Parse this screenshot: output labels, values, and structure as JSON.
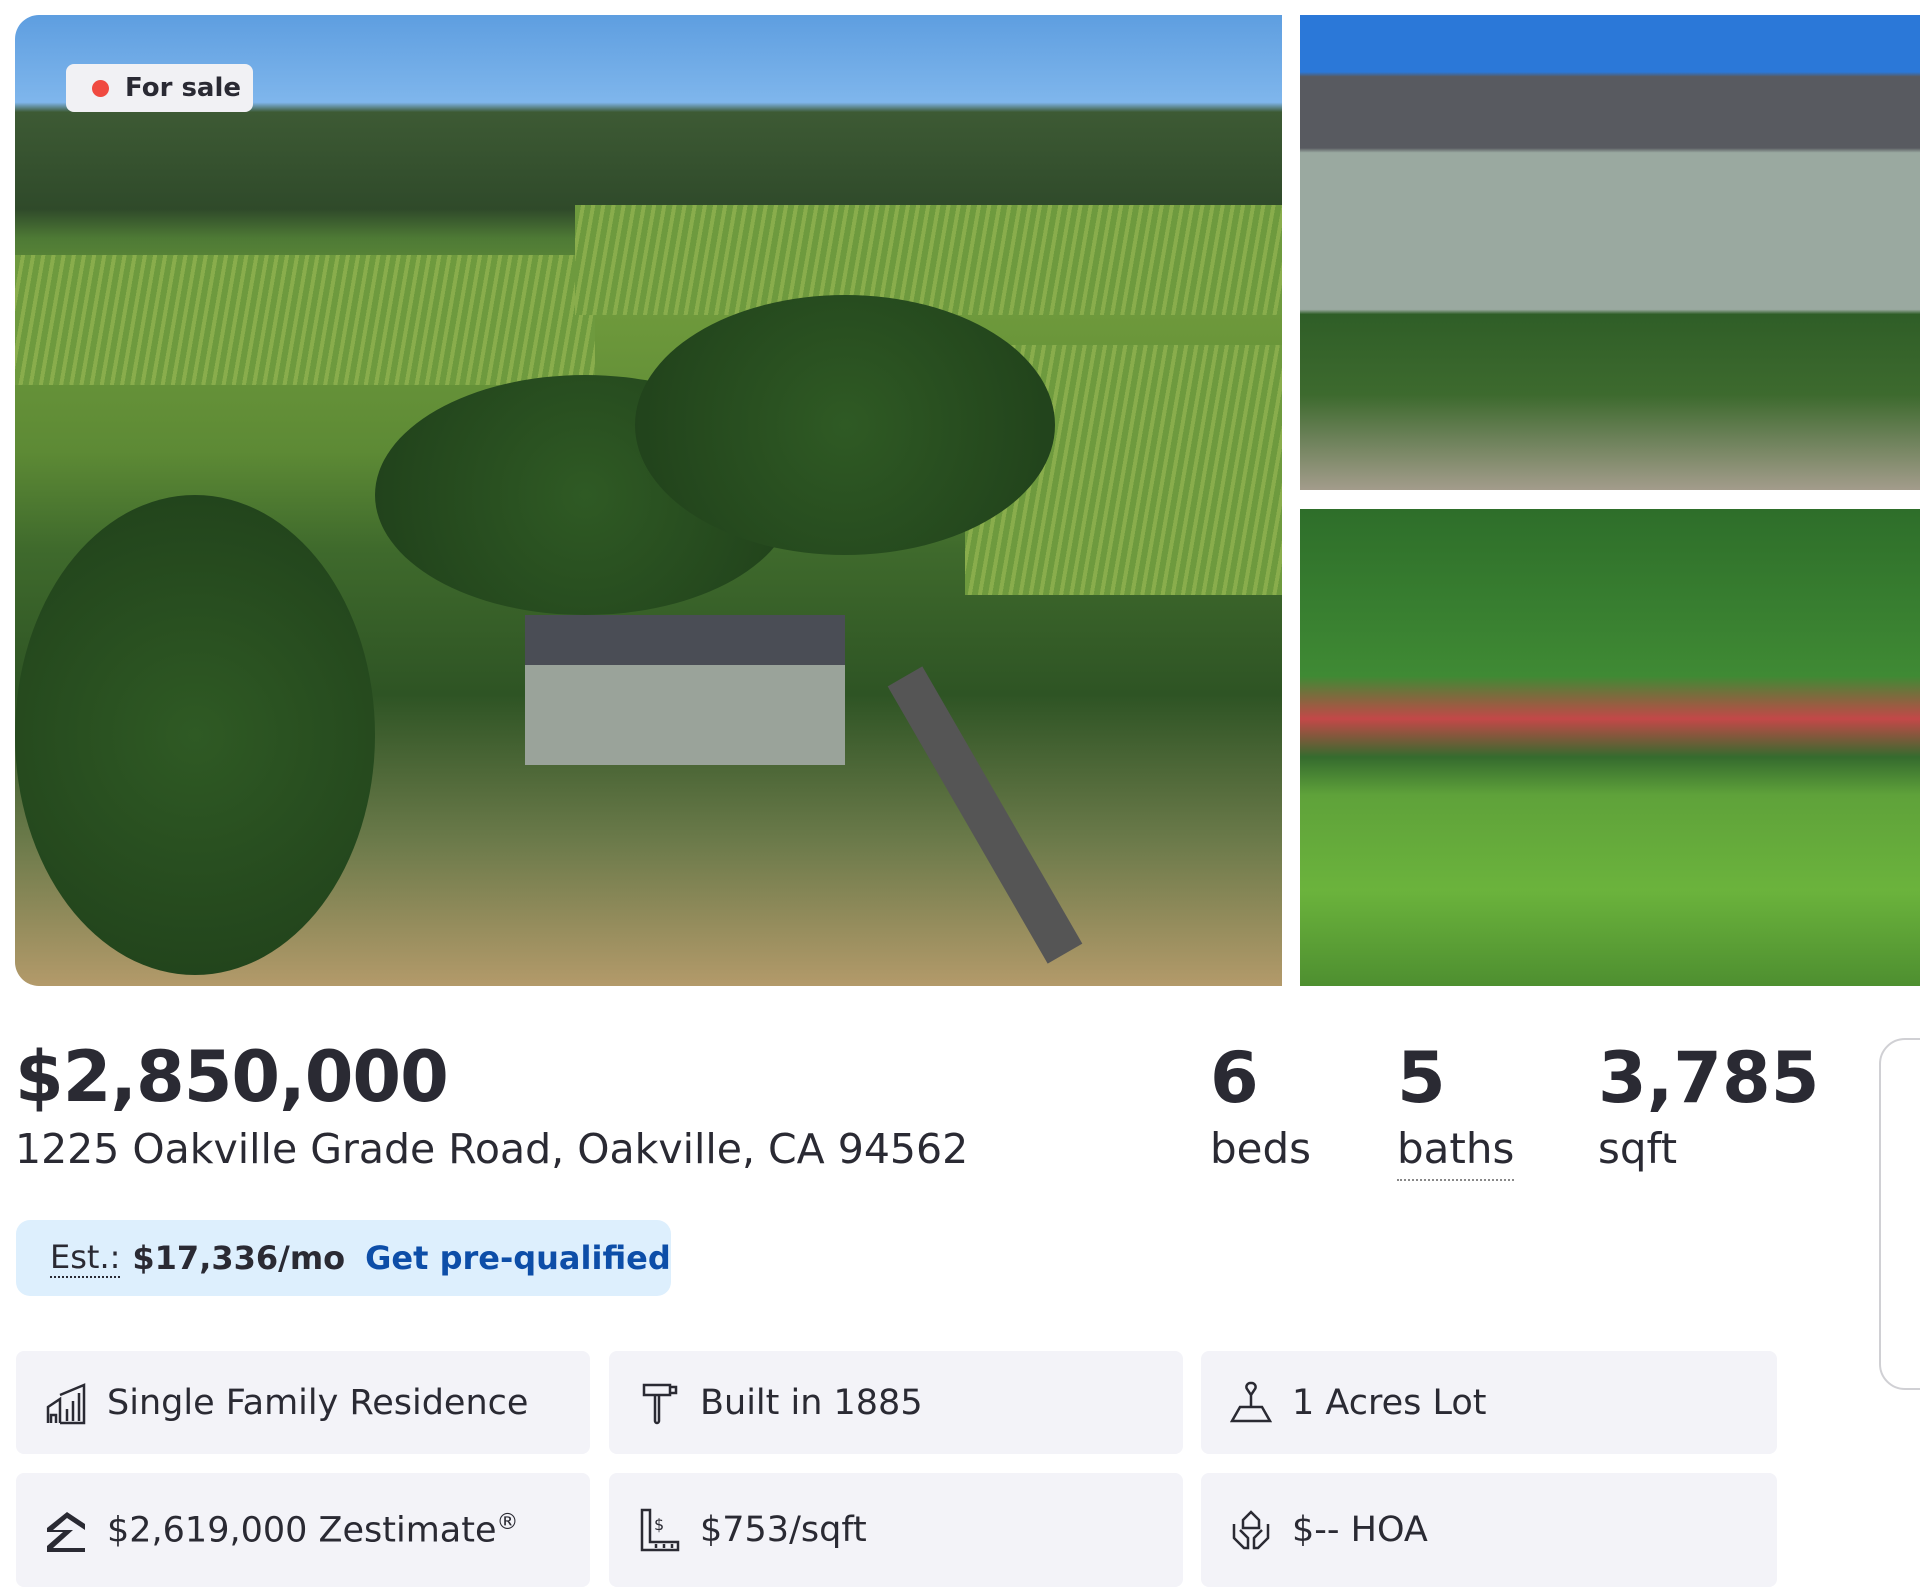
{
  "listing": {
    "status_badge": "For sale",
    "status_color": "#f04a40",
    "price": "$2,850,000",
    "address": "1225 Oakville Grade Road, Oakville, CA 94562",
    "stats": [
      {
        "value": "6",
        "label": "beds"
      },
      {
        "value": "5",
        "label": "baths"
      },
      {
        "value": "3,785",
        "label": "sqft"
      }
    ],
    "estimate": {
      "label": "Est.:",
      "value": "$17,336/mo",
      "link": "Get pre-qualified"
    },
    "link_color": "#0d4ea8"
  },
  "facts": [
    {
      "icon": "building-icon",
      "text": "Single Family Residence"
    },
    {
      "icon": "hammer-icon",
      "text": "Built in 1885"
    },
    {
      "icon": "lot-icon",
      "text": "1 Acres Lot"
    },
    {
      "icon": "zestimate-icon",
      "text": "$2,619,000 Zestimate",
      "sup": "®"
    },
    {
      "icon": "price-per-sqft-icon",
      "text": "$753/sqft"
    },
    {
      "icon": "hoa-icon",
      "text": "$-- HOA"
    }
  ]
}
